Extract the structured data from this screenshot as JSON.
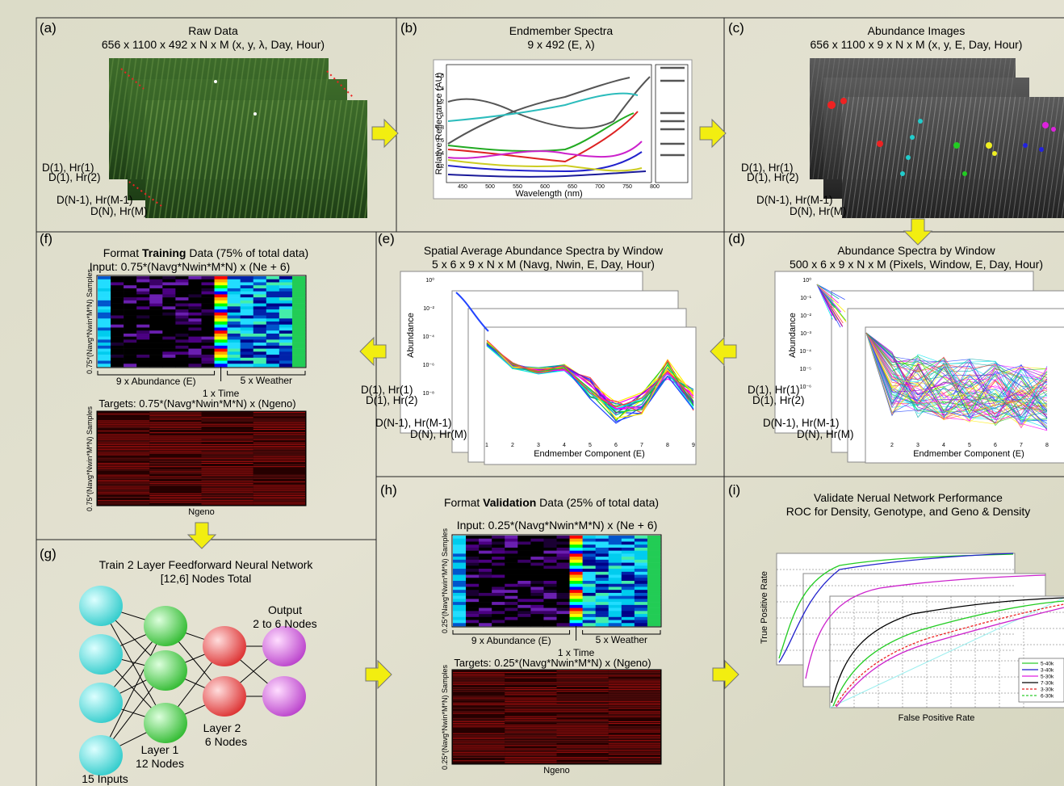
{
  "panels": {
    "a": {
      "label": "(a)",
      "title": "Raw Data",
      "subtitle": "656 x 1100 x 492 x N x M (x, y, λ, Day, Hour)",
      "stack_labels": [
        "D(1), Hr(1)",
        "D(1), Hr(2)",
        "D(N-1), Hr(M-1)",
        "D(N), Hr(M)"
      ]
    },
    "b": {
      "label": "(b)",
      "title": "Endmember Spectra",
      "subtitle": "9 x 492 (E, λ)",
      "y_label": "Relative Reflectance (AU)",
      "x_label": "Wavelength (nm)",
      "x_ticks": [
        "450",
        "500",
        "550",
        "600",
        "650",
        "700",
        "750",
        "800"
      ],
      "y_ticks": [
        "0.2",
        "0.4",
        "0.6",
        "0.8",
        "1",
        "1.2",
        "1.4",
        "1.6"
      ]
    },
    "c": {
      "label": "(c)",
      "title": "Abundance Images",
      "subtitle": "656 x 1100 x 9 x N x M (x, y, E, Day, Hour)",
      "stack_labels": [
        "D(1), Hr(1)",
        "D(1), Hr(2)",
        "D(N-1), Hr(M-1)",
        "D(N), Hr(M)"
      ]
    },
    "d": {
      "label": "(d)",
      "title": "Abundance Spectra by Window",
      "subtitle": "500 x 6 x 9 x N x M (Pixels, Window, E, Day, Hour)",
      "y_label": "Abundance",
      "x_label": "Endmember Component (E)",
      "x_ticks": [
        "2",
        "3",
        "4",
        "5",
        "6",
        "7",
        "8"
      ],
      "y_ticks": [
        "10⁰",
        "10⁻¹",
        "10⁻²",
        "10⁻³",
        "10⁻⁴",
        "10⁻⁵",
        "10⁻⁶"
      ],
      "stack_labels": [
        "D(1), Hr(1)",
        "D(1), Hr(2)",
        "D(N-1), Hr(M-1)",
        "D(N), Hr(M)"
      ]
    },
    "e": {
      "label": "(e)",
      "title": "Spatial Average Abundance Spectra by Window",
      "subtitle": "5 x 6 x 9 x N x M (Navg, Nwin, E, Day, Hour)",
      "y_label": "Abundance",
      "x_label": "Endmember Component (E)",
      "x_ticks": [
        "1",
        "2",
        "3",
        "4",
        "5",
        "6",
        "7",
        "8",
        "9"
      ],
      "y_ticks": [
        "10⁰",
        "10⁻²",
        "10⁻⁴",
        "10⁻⁶",
        "10⁻⁸"
      ],
      "stack_labels": [
        "D(1), Hr(1)",
        "D(1), Hr(2)",
        "D(N-1), Hr(M-1)",
        "D(N), Hr(M)"
      ]
    },
    "f": {
      "label": "(f)",
      "title": [
        "Format ",
        "Training",
        " Data (75% of total data)"
      ],
      "input": "Input: 0.75*(Navg*Nwin*M*N) x (Ne + 6)",
      "y_label": "0.75*(Navg*Nwin*M*N) Samples",
      "abundance_label": "9 x Abundance (E)",
      "weather_label": "5 x Weather",
      "time_label": "1 x Time",
      "targets": "Targets: 0.75*(Navg*Nwin*M*N) x (Ngeno)",
      "targets_y_label": "0.75*(Navg*Nwin*M*N) Samples",
      "targets_x_label": "Ngeno"
    },
    "g": {
      "label": "(g)",
      "title": "Train 2 Layer Feedforward Neural Network",
      "subtitle": "[12,6] Nodes Total",
      "output": [
        "Output",
        "2 to 6 Nodes"
      ],
      "layer2": [
        "Layer 2",
        "6 Nodes"
      ],
      "layer1": [
        "Layer 1",
        "12 Nodes"
      ],
      "inputs": "15 Inputs"
    },
    "h": {
      "label": "(h)",
      "title": [
        "Format ",
        "Validation",
        " Data (25% of total data)"
      ],
      "input": "Input: 0.25*(Navg*Nwin*M*N) x (Ne + 6)",
      "y_label": "0.25*(Navg*Nwin*M*N) Samples",
      "abundance_label": "9 x Abundance (E)",
      "weather_label": "5 x Weather",
      "time_label": "1 x Time",
      "targets": "Targets: 0.25*(Navg*Nwin*M*N) x (Ngeno)",
      "targets_y_label": "0.25*(Navg*Nwin*M*N) Samples",
      "targets_x_label": "Ngeno"
    },
    "i": {
      "label": "(i)",
      "title": "Validate Nerual Network Performance",
      "subtitle": "ROC for Density, Genotype, and Geno & Density",
      "y_label": "True Positive Rate",
      "x_label": "False Positive Rate",
      "legend": [
        {
          "name": "5-40k",
          "color": "#2ecc2e",
          "dash": false
        },
        {
          "name": "3-40k",
          "color": "#1a1acc",
          "dash": false
        },
        {
          "name": "5-30k",
          "color": "#e020e0",
          "dash": false
        },
        {
          "name": "7-30k",
          "color": "#000000",
          "dash": false
        },
        {
          "name": "3-30k",
          "color": "#e02020",
          "dash": true
        },
        {
          "name": "6-30k",
          "color": "#2ecc2e",
          "dash": true
        }
      ]
    }
  }
}
